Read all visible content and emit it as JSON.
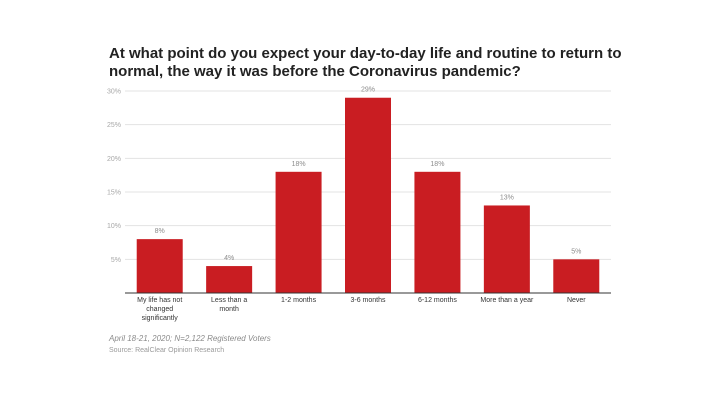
{
  "footnote": "April 18-21, 2020; N=2,122 Registered Voters",
  "source": "Source: RealClear Opinion Research",
  "colors": {
    "bar": "#c91d22",
    "grid": "#e3e3e3",
    "axis": "#333333",
    "tick_text": "#a8a8a8",
    "label_text": "#8c8c8c",
    "category_text": "#333333"
  },
  "chart_data": {
    "type": "bar",
    "title": "At what point do you expect your day-to-day life and routine to return to normal, the way it was before the Coronavirus pandemic?",
    "categories": [
      [
        "My life has not",
        "changed",
        "significantly"
      ],
      [
        "Less than a",
        "month"
      ],
      [
        "1-2 months"
      ],
      [
        "3-6 months"
      ],
      [
        "6-12 months"
      ],
      [
        "More than a year"
      ],
      [
        "Never"
      ]
    ],
    "values": [
      8,
      4,
      18,
      29,
      18,
      13,
      5
    ],
    "value_labels": [
      "8%",
      "4%",
      "18%",
      "29%",
      "18%",
      "13%",
      "5%"
    ],
    "y_ticks": [
      5,
      10,
      15,
      20,
      25,
      30
    ],
    "y_tick_labels": [
      "5%",
      "10%",
      "15%",
      "20%",
      "25%",
      "30%"
    ],
    "ylim": [
      0,
      30
    ],
    "grid": true,
    "legend": "none"
  }
}
